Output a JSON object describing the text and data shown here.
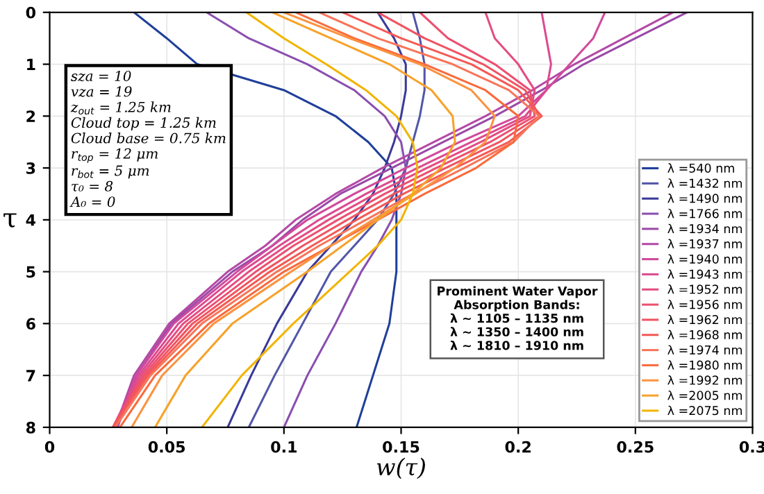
{
  "chart_data": {
    "type": "line",
    "orientation": "horizontal",
    "xlabel": "w(τ)",
    "ylabel": "τ",
    "x": [
      0,
      0.5,
      1,
      1.5,
      2,
      2.5,
      3,
      3.5,
      4,
      4.5,
      5,
      6,
      7,
      8
    ],
    "xlim": [
      0,
      0.3
    ],
    "xticks": [
      0,
      0.05,
      0.1,
      0.15,
      0.2,
      0.25,
      0.3
    ],
    "ylim": [
      8,
      0
    ],
    "yticks": [
      0,
      1,
      2,
      3,
      4,
      5,
      6,
      7,
      8
    ],
    "grid": true,
    "legend": "right",
    "marker": "none",
    "line_style": "solid",
    "annotations": [
      "sza = 10\nvza = 19\nz$_{out}$ = 1.25 km\nCloud top = 1.25 km\nCloud base = 0.75 km\nr$_{top}$ = 12 μm\nr$_{bot}$ = 5 μm\nτ₀ = 8\nA₀ = 0",
      "Prominent Water Vapor\nAbsorption Bands:\nλ ~ 1105 – 1135 nm\nλ ~ 1350 – 1400 nm\nλ ~ 1810 – 1910 nm"
    ],
    "series": [
      {
        "name": "λ =540 nm",
        "color": "#1f3f9a",
        "values": [
          0.036,
          0.05,
          0.063,
          0.1,
          0.122,
          0.136,
          0.146,
          0.148,
          0.148,
          0.148,
          0.148,
          0.145,
          0.138,
          0.131
        ]
      },
      {
        "name": "λ =1432 nm",
        "color": "#5256a8",
        "values": [
          0.155,
          0.158,
          0.16,
          0.16,
          0.158,
          0.155,
          0.152,
          0.147,
          0.14,
          0.13,
          0.12,
          0.108,
          0.096,
          0.085
        ]
      },
      {
        "name": "λ =1490 nm",
        "color": "#3a3a9a",
        "values": [
          0.14,
          0.147,
          0.152,
          0.152,
          0.15,
          0.147,
          0.143,
          0.138,
          0.13,
          0.12,
          0.11,
          0.097,
          0.086,
          0.076
        ]
      },
      {
        "name": "λ =1766 nm",
        "color": "#8a4fb0",
        "values": [
          0.067,
          0.085,
          0.11,
          0.13,
          0.143,
          0.15,
          0.152,
          0.15,
          0.146,
          0.14,
          0.133,
          0.122,
          0.11,
          0.1
        ]
      },
      {
        "name": "λ =1934 nm",
        "color": "#9a4aa8",
        "values": [
          0.272,
          0.25,
          0.228,
          0.21,
          0.19,
          0.168,
          0.146,
          0.124,
          0.108,
          0.095,
          0.078,
          0.052,
          0.037,
          0.029
        ]
      },
      {
        "name": "λ =1937 nm",
        "color": "#b44aa6",
        "values": [
          0.266,
          0.245,
          0.224,
          0.206,
          0.186,
          0.164,
          0.142,
          0.122,
          0.105,
          0.092,
          0.076,
          0.051,
          0.036,
          0.028
        ]
      },
      {
        "name": "λ =1940 nm",
        "color": "#d04a9c",
        "values": [
          0.237,
          0.232,
          0.222,
          0.212,
          0.2,
          0.175,
          0.152,
          0.13,
          0.11,
          0.095,
          0.08,
          0.053,
          0.037,
          0.028
        ]
      },
      {
        "name": "λ =1943 nm",
        "color": "#dc4a90",
        "values": [
          0.21,
          0.212,
          0.214,
          0.212,
          0.203,
          0.18,
          0.157,
          0.135,
          0.115,
          0.098,
          0.082,
          0.055,
          0.038,
          0.027
        ]
      },
      {
        "name": "λ =1952 nm",
        "color": "#e44c82",
        "values": [
          0.186,
          0.19,
          0.2,
          0.207,
          0.205,
          0.184,
          0.161,
          0.139,
          0.119,
          0.101,
          0.085,
          0.057,
          0.039,
          0.027
        ]
      },
      {
        "name": "λ =1956 nm",
        "color": "#ec5070",
        "values": [
          0.158,
          0.17,
          0.19,
          0.205,
          0.207,
          0.188,
          0.165,
          0.143,
          0.123,
          0.104,
          0.088,
          0.059,
          0.04,
          0.027
        ]
      },
      {
        "name": "λ =1962 nm",
        "color": "#f05462",
        "values": [
          0.14,
          0.16,
          0.185,
          0.203,
          0.209,
          0.192,
          0.169,
          0.147,
          0.127,
          0.108,
          0.091,
          0.061,
          0.041,
          0.027
        ]
      },
      {
        "name": "λ =1968 nm",
        "color": "#f45a55",
        "values": [
          0.125,
          0.15,
          0.18,
          0.2,
          0.21,
          0.196,
          0.173,
          0.151,
          0.131,
          0.112,
          0.094,
          0.063,
          0.042,
          0.027
        ]
      },
      {
        "name": "λ =1974 nm",
        "color": "#f8755a",
        "values": [
          0.115,
          0.14,
          0.172,
          0.196,
          0.209,
          0.198,
          0.177,
          0.155,
          0.135,
          0.115,
          0.097,
          0.065,
          0.043,
          0.028
        ]
      },
      {
        "name": "λ =1980 nm",
        "color": "#fa6a3c",
        "values": [
          0.105,
          0.13,
          0.16,
          0.186,
          0.2,
          0.198,
          0.182,
          0.16,
          0.14,
          0.12,
          0.1,
          0.068,
          0.045,
          0.03
        ]
      },
      {
        "name": "λ =1992 nm",
        "color": "#fb9340",
        "values": [
          0.1,
          0.128,
          0.158,
          0.18,
          0.19,
          0.186,
          0.173,
          0.156,
          0.138,
          0.12,
          0.103,
          0.07,
          0.048,
          0.035
        ]
      },
      {
        "name": "λ =2005 nm",
        "color": "#f7a22a",
        "values": [
          0.095,
          0.12,
          0.145,
          0.163,
          0.172,
          0.173,
          0.167,
          0.155,
          0.14,
          0.125,
          0.11,
          0.078,
          0.058,
          0.045
        ]
      },
      {
        "name": "λ =2075 nm",
        "color": "#f2b400",
        "values": [
          0.084,
          0.1,
          0.118,
          0.135,
          0.148,
          0.155,
          0.157,
          0.155,
          0.15,
          0.14,
          0.128,
          0.104,
          0.082,
          0.065
        ]
      }
    ]
  }
}
